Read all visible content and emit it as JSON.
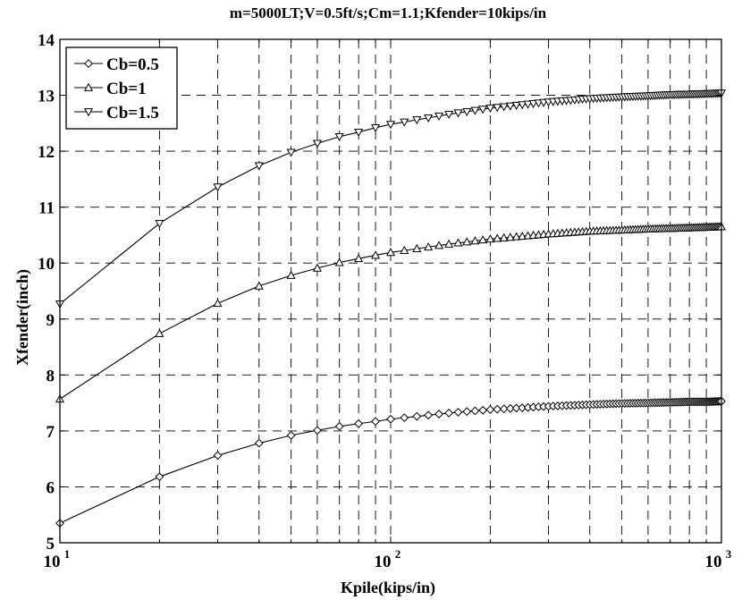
{
  "chart_data": {
    "type": "line",
    "title": "m=5000LT;V=0.5ft/s;Cm=1.1;Kfender=10kips/in",
    "xlabel": "Kpile(kips/in)",
    "ylabel": "Xfender(inch)",
    "xscale": "log",
    "xlim": [
      10,
      1000
    ],
    "ylim": [
      5,
      14
    ],
    "grid": true,
    "legend_position": "top-left",
    "x_ticks": [
      {
        "base": "10",
        "exp": "1"
      },
      {
        "base": "10",
        "exp": "2"
      },
      {
        "base": "10",
        "exp": "3"
      }
    ],
    "y_ticks": [
      "5",
      "6",
      "7",
      "8",
      "9",
      "10",
      "11",
      "12",
      "13",
      "14"
    ],
    "x": [
      10,
      20,
      30,
      40,
      50,
      60,
      70,
      80,
      90,
      100
    ],
    "x_range_note_hidden": "",
    "series": [
      {
        "name": "Cb=0.5",
        "marker": "diamond",
        "points": [
          [
            10,
            5.35
          ],
          [
            20,
            6.18
          ],
          [
            30,
            6.56
          ],
          [
            40,
            6.78
          ],
          [
            50,
            6.92
          ],
          [
            60,
            7.01
          ],
          [
            70,
            7.08
          ],
          [
            80,
            7.13
          ],
          [
            90,
            7.17
          ],
          [
            100,
            7.21
          ],
          [
            150,
            7.32
          ],
          [
            200,
            7.38
          ],
          [
            300,
            7.44
          ],
          [
            400,
            7.47
          ],
          [
            500,
            7.49
          ],
          [
            600,
            7.5
          ],
          [
            700,
            7.51
          ],
          [
            800,
            7.52
          ],
          [
            900,
            7.52
          ],
          [
            1000,
            7.53
          ]
        ]
      },
      {
        "name": "Cb=1",
        "marker": "triangle-up",
        "points": [
          [
            10,
            7.57
          ],
          [
            20,
            8.74
          ],
          [
            30,
            9.28
          ],
          [
            40,
            9.59
          ],
          [
            50,
            9.78
          ],
          [
            60,
            9.91
          ],
          [
            70,
            10.01
          ],
          [
            80,
            10.08
          ],
          [
            90,
            10.14
          ],
          [
            100,
            10.19
          ],
          [
            150,
            10.34
          ],
          [
            200,
            10.43
          ],
          [
            300,
            10.52
          ],
          [
            400,
            10.57
          ],
          [
            500,
            10.59
          ],
          [
            600,
            10.61
          ],
          [
            700,
            10.62
          ],
          [
            800,
            10.63
          ],
          [
            900,
            10.64
          ],
          [
            1000,
            10.65
          ]
        ]
      },
      {
        "name": "Cb=1.5",
        "marker": "triangle-down",
        "points": [
          [
            10,
            9.27
          ],
          [
            20,
            10.71
          ],
          [
            30,
            11.36
          ],
          [
            40,
            11.74
          ],
          [
            50,
            11.98
          ],
          [
            60,
            12.14
          ],
          [
            70,
            12.26
          ],
          [
            80,
            12.34
          ],
          [
            90,
            12.42
          ],
          [
            100,
            12.48
          ],
          [
            150,
            12.66
          ],
          [
            200,
            12.77
          ],
          [
            300,
            12.88
          ],
          [
            400,
            12.94
          ],
          [
            500,
            12.97
          ],
          [
            600,
            12.99
          ],
          [
            700,
            13.01
          ],
          [
            800,
            13.02
          ],
          [
            900,
            13.03
          ],
          [
            1000,
            13.04
          ]
        ]
      }
    ]
  }
}
